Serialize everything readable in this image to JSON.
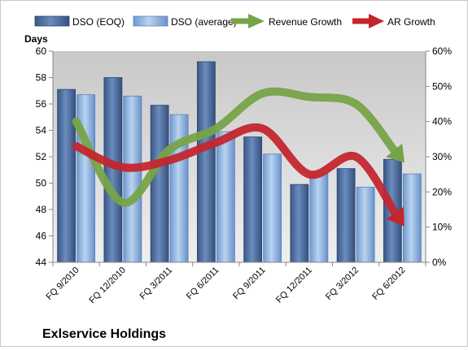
{
  "chart_data": {
    "type": "bar",
    "title": "Exlservice Holdings",
    "ylabel": "Days",
    "ylim": [
      44,
      60
    ],
    "y2lim": [
      0,
      0.6
    ],
    "yticks": [
      "44",
      "46",
      "48",
      "50",
      "52",
      "54",
      "56",
      "58",
      "60"
    ],
    "y2ticks": [
      "0%",
      "10%",
      "20%",
      "30%",
      "40%",
      "50%",
      "60%"
    ],
    "categories": [
      "FQ 9/2010",
      "FQ 12/2010",
      "FQ 3/2011",
      "FQ 6/2011",
      "FQ 9/2011",
      "FQ 12/2011",
      "FQ 3/2012",
      "FQ 6/2012"
    ],
    "legend_position": "top",
    "grid": false,
    "series": [
      {
        "name": "DSO (EOQ)",
        "axis": "left",
        "kind": "bar",
        "color": "#4f6fa0",
        "values": [
          57.1,
          58.0,
          55.9,
          59.2,
          53.5,
          49.9,
          51.1,
          51.8
        ]
      },
      {
        "name": "DSO (average)",
        "axis": "left",
        "kind": "bar",
        "color": "#8db3e2",
        "values": [
          56.7,
          56.6,
          55.2,
          53.9,
          52.2,
          50.8,
          49.7,
          50.7
        ]
      },
      {
        "name": "Revenue Growth",
        "axis": "right",
        "kind": "arrow-line",
        "color": "#77a348",
        "values": [
          0.4,
          0.17,
          0.32,
          0.38,
          0.48,
          0.47,
          0.45,
          0.29
        ]
      },
      {
        "name": "AR Growth",
        "axis": "right",
        "kind": "arrow-line",
        "color": "#c4262e",
        "values": [
          0.33,
          0.27,
          0.29,
          0.34,
          0.38,
          0.25,
          0.3,
          0.11
        ]
      }
    ]
  }
}
